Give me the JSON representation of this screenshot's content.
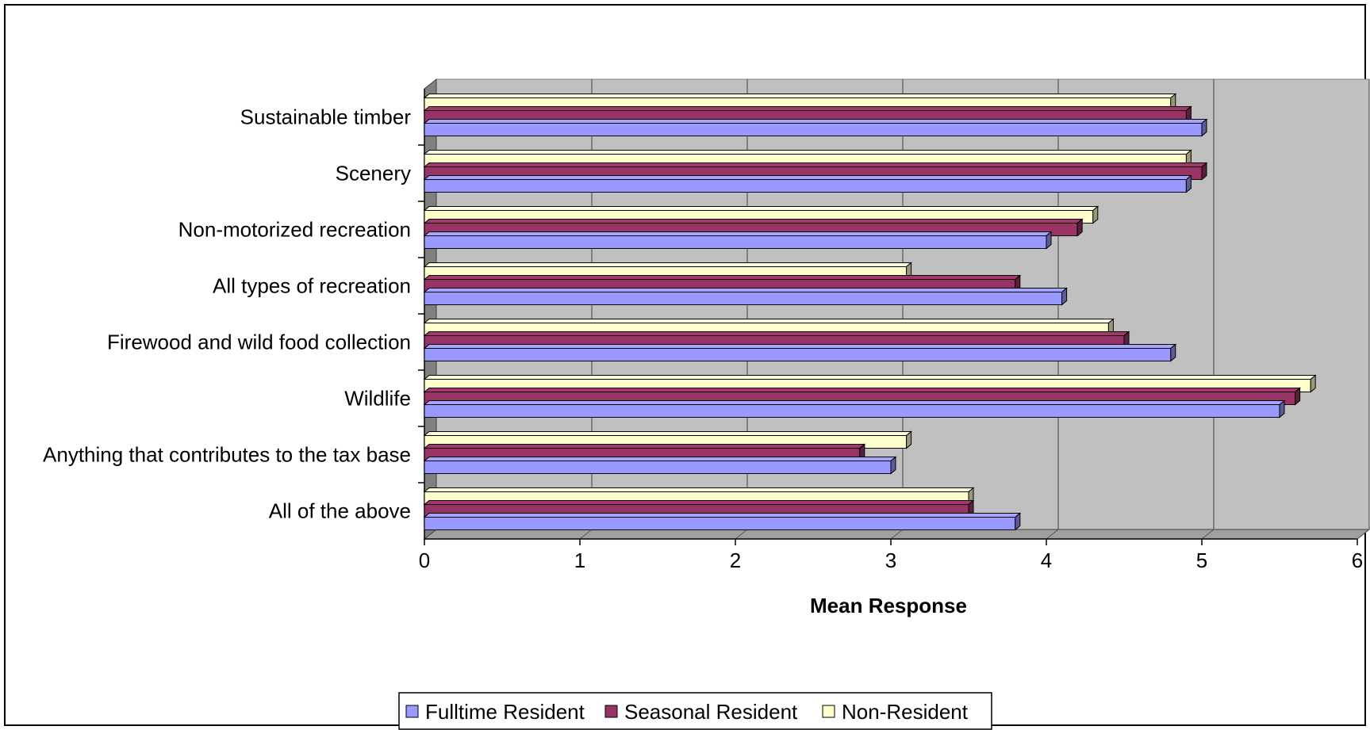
{
  "chart_data": {
    "type": "bar",
    "orientation": "horizontal",
    "style": "3d-clustered",
    "title": "",
    "xlabel": "Mean Response",
    "ylabel": "",
    "xlim": [
      0,
      6
    ],
    "xticks": [
      "0",
      "1",
      "2",
      "3",
      "4",
      "5",
      "6"
    ],
    "grid": true,
    "legend_position": "bottom",
    "categories": [
      "Sustainable timber",
      "Scenery",
      "Non-motorized recreation",
      "All types of recreation",
      "Firewood and wild food collection",
      "Wildlife",
      "Anything that contributes to the tax base",
      "All of the above"
    ],
    "series": [
      {
        "name": "Fulltime Resident",
        "color": "#9999FF",
        "values": [
          5.0,
          4.9,
          4.0,
          4.1,
          4.8,
          5.5,
          3.0,
          3.8
        ]
      },
      {
        "name": "Seasonal Resident",
        "color": "#993366",
        "values": [
          4.9,
          5.0,
          4.2,
          3.8,
          4.5,
          5.6,
          2.8,
          3.5
        ]
      },
      {
        "name": "Non-Resident",
        "color": "#FFFFCC",
        "values": [
          4.8,
          4.9,
          4.3,
          3.1,
          4.4,
          5.7,
          3.1,
          3.5
        ]
      }
    ],
    "colors": {
      "plot_background": "#C0C0C0",
      "wall_side": "#808080",
      "gridline": "#555555"
    }
  }
}
